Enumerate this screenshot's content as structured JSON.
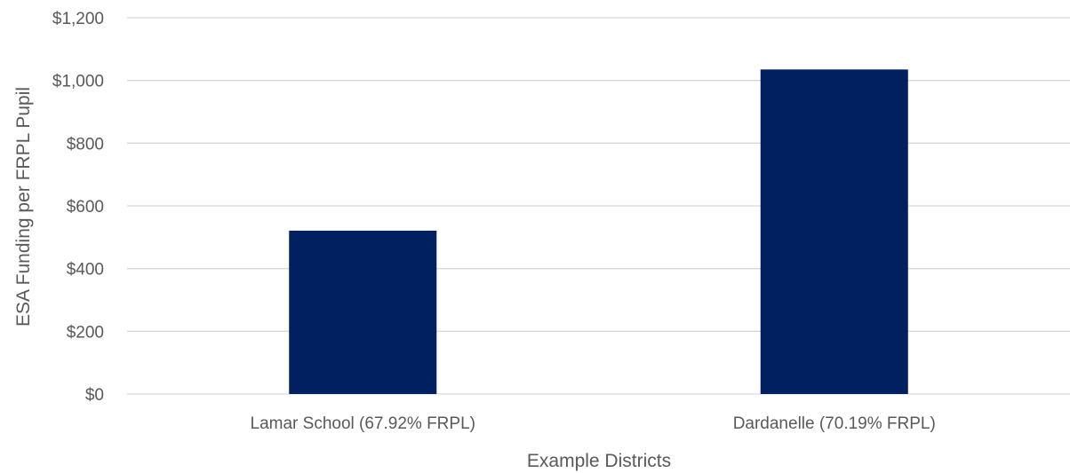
{
  "chart_data": {
    "type": "bar",
    "title": "",
    "xlabel": "Example Districts",
    "ylabel": "ESA Funding per FRPL Pupil",
    "categories": [
      "Lamar School (67.92% FRPL)",
      "Dardanelle (70.19% FRPL)"
    ],
    "values": [
      521,
      1035
    ],
    "ylim": [
      0,
      1200
    ],
    "yticks": [
      0,
      200,
      400,
      600,
      800,
      1000,
      1200
    ],
    "ytick_labels": [
      "$0",
      "$200",
      "$400",
      "$600",
      "$800",
      "$1,000",
      "$1,200"
    ],
    "grid": true,
    "legend": "none",
    "colors": {
      "bar": "#002060",
      "grid": "#d9d9d9",
      "text": "#595959"
    }
  }
}
